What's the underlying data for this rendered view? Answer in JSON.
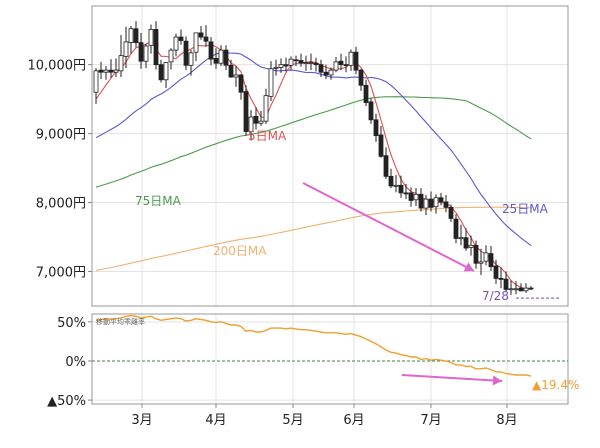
{
  "chart_data": [
    {
      "type": "candlestick",
      "title": "",
      "xlabel": "",
      "ylabel": "",
      "ylim": [
        6500,
        10850
      ],
      "y_ticks": [
        {
          "value": 10000,
          "label": "10,000円"
        },
        {
          "value": 9000,
          "label": "9,000円"
        },
        {
          "value": 8000,
          "label": "8,000円"
        },
        {
          "value": 7000,
          "label": "7,000円"
        }
      ],
      "x_ticks": [
        "3月",
        "4月",
        "5月",
        "6月",
        "7月",
        "8月"
      ],
      "grid": true,
      "colors": {
        "up": "#ffffff",
        "down": "#222222",
        "wick": "#222222",
        "ma5": "#e05050",
        "ma25": "#5a5ad2",
        "ma75": "#4e9a4e",
        "ma200": "#f0b070",
        "trend_arrow": "#e066cc"
      },
      "candles": {
        "open": [
          9600,
          9920,
          9890,
          9920,
          9890,
          9910,
          10120,
          10320,
          10520,
          10320,
          10050,
          10280,
          10510,
          10000,
          9780,
          10040,
          10210,
          10400,
          10340,
          9990,
          10180,
          10460,
          10400,
          10330,
          10090,
          10020,
          10210,
          9990,
          9820,
          9850,
          9610,
          9030,
          9250,
          9150,
          9180,
          9540,
          9950,
          9960,
          10000,
          9990,
          10070,
          10060,
          10020,
          10020,
          10020,
          10000,
          9890,
          9850,
          9920,
          10050,
          10000,
          9990,
          10180,
          9920,
          9700,
          9460,
          9200,
          8980,
          8680,
          8380,
          8250,
          8250,
          8140,
          8140,
          8040,
          8120,
          7920,
          8050,
          7940,
          8070,
          8010,
          7930,
          7760,
          7480,
          7490,
          7350,
          7380,
          7120,
          7150,
          7260,
          7080,
          6900,
          6890,
          6750,
          6750,
          6760,
          6720,
          6760
        ],
        "high": [
          9950,
          10040,
          9980,
          10080,
          10090,
          10430,
          10550,
          10560,
          10630,
          10460,
          10300,
          10580,
          10630,
          10070,
          10030,
          10240,
          10450,
          10510,
          10410,
          10210,
          10410,
          10560,
          10570,
          10400,
          10240,
          10280,
          10280,
          10070,
          9980,
          9860,
          9700,
          9340,
          9380,
          9330,
          9650,
          10050,
          10070,
          10090,
          10100,
          10120,
          10130,
          10160,
          10130,
          10160,
          10100,
          10070,
          10000,
          9960,
          10110,
          10160,
          10120,
          10220,
          10260,
          9940,
          9780,
          9520,
          9290,
          9110,
          8800,
          8490,
          8400,
          8390,
          8270,
          8220,
          8210,
          8210,
          8110,
          8160,
          8120,
          8140,
          8110,
          7970,
          7830,
          7680,
          7630,
          7520,
          7450,
          7330,
          7380,
          7370,
          7170,
          7060,
          7000,
          6870,
          6860,
          6830,
          6830,
          6790
        ],
        "low": [
          9430,
          9790,
          9780,
          9810,
          9820,
          9820,
          9950,
          10160,
          10250,
          9940,
          9950,
          10160,
          9930,
          9740,
          9660,
          9930,
          10120,
          10290,
          9920,
          9840,
          10050,
          10360,
          10260,
          9990,
          9940,
          9980,
          9920,
          9810,
          9680,
          9490,
          8970,
          8900,
          9060,
          9110,
          9140,
          9470,
          9840,
          9880,
          9900,
          9920,
          9980,
          9970,
          9910,
          9920,
          9900,
          9820,
          9790,
          9780,
          9890,
          9920,
          9890,
          9910,
          9860,
          9620,
          9400,
          9140,
          8880,
          8650,
          8340,
          8210,
          8150,
          8070,
          8050,
          7940,
          7950,
          7870,
          7820,
          7870,
          7840,
          7960,
          7860,
          7720,
          7410,
          7380,
          7300,
          7230,
          7040,
          6950,
          7090,
          7010,
          6820,
          6760,
          6710,
          6660,
          6670,
          6710,
          6690,
          6730
        ],
        "close": [
          9910,
          9890,
          9920,
          9890,
          9920,
          10130,
          10330,
          10520,
          10320,
          10050,
          10270,
          10510,
          10000,
          9780,
          10030,
          10210,
          10400,
          10350,
          9990,
          10170,
          10460,
          10400,
          10340,
          10080,
          10020,
          10210,
          9990,
          9820,
          9850,
          9600,
          9030,
          9240,
          9150,
          9180,
          9550,
          9940,
          9960,
          10000,
          9980,
          10080,
          10060,
          10020,
          10030,
          10030,
          10000,
          9890,
          9850,
          9920,
          10040,
          10000,
          9990,
          10180,
          9920,
          9700,
          9450,
          9200,
          8970,
          8670,
          8380,
          8240,
          8250,
          8140,
          8130,
          8030,
          8120,
          7920,
          8050,
          7930,
          8070,
          8010,
          7930,
          7770,
          7480,
          7490,
          7340,
          7380,
          7120,
          7140,
          7270,
          7070,
          6900,
          6890,
          6740,
          6750,
          6750,
          6720,
          6760,
          6750
        ]
      },
      "annotations": [
        {
          "text": "5日MA",
          "color": "#e05050"
        },
        {
          "text": "25日MA",
          "color": "#5a5ad2"
        },
        {
          "text": "75日MA",
          "color": "#4e9a4e"
        },
        {
          "text": "200日MA",
          "color": "#f0b070"
        },
        {
          "text": "7/28",
          "color": "#7755bb"
        }
      ],
      "reference_line": {
        "value": 6760,
        "style": "dashed",
        "color": "#7755bb"
      }
    },
    {
      "type": "line",
      "title": "",
      "legend_label": "移動平均乖離率",
      "ylim": [
        -55,
        60
      ],
      "y_ticks": [
        {
          "value": 50,
          "label": "50%"
        },
        {
          "value": 0,
          "label": "0%"
        },
        {
          "value": -50,
          "label": "▲50%"
        }
      ],
      "x_ticks": [
        "3月",
        "4月",
        "5月",
        "6月",
        "7月",
        "8月"
      ],
      "zero_line": {
        "value": 0,
        "color": "#3a8a3a",
        "style": "dashed"
      },
      "series": [
        {
          "color": "#f0a030",
          "values": [
            52,
            53,
            54,
            53,
            54,
            55,
            57,
            58,
            57,
            55,
            56,
            57,
            54,
            52,
            53,
            54,
            55,
            54,
            51,
            52,
            54,
            53,
            52,
            50,
            49,
            50,
            48,
            46,
            46,
            44,
            38,
            39,
            37,
            37,
            39,
            42,
            42,
            42,
            41,
            42,
            41,
            40,
            40,
            39,
            38,
            37,
            36,
            36,
            36,
            35,
            34,
            35,
            33,
            31,
            28,
            25,
            22,
            18,
            14,
            11,
            10,
            8,
            7,
            5,
            5,
            2,
            3,
            1,
            2,
            1,
            0,
            -2,
            -5,
            -5,
            -7,
            -7,
            -10,
            -10,
            -9,
            -11,
            -14,
            -14,
            -16,
            -17,
            -18,
            -18,
            -18,
            -19.4
          ]
        }
      ],
      "end_label": {
        "text": "▲19.4%",
        "color": "#f0a030"
      },
      "trend_arrow_color": "#e066cc"
    }
  ]
}
